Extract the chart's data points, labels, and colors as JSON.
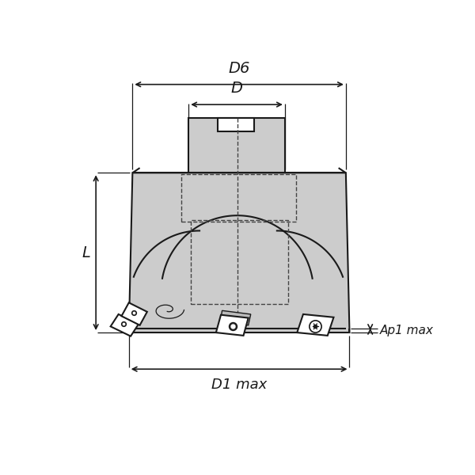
{
  "bg_color": "#ffffff",
  "line_color": "#1a1a1a",
  "body_fill": "#cccccc",
  "body_fill_light": "#d8d8d8",
  "dashed_color": "#444444",
  "labels": {
    "D6": "D6",
    "D": "D",
    "L": "L",
    "D1max": "D1 max",
    "Ap1max": "Ap1 max"
  },
  "fig_width": 6.0,
  "fig_height": 6.0,
  "dpi": 100
}
